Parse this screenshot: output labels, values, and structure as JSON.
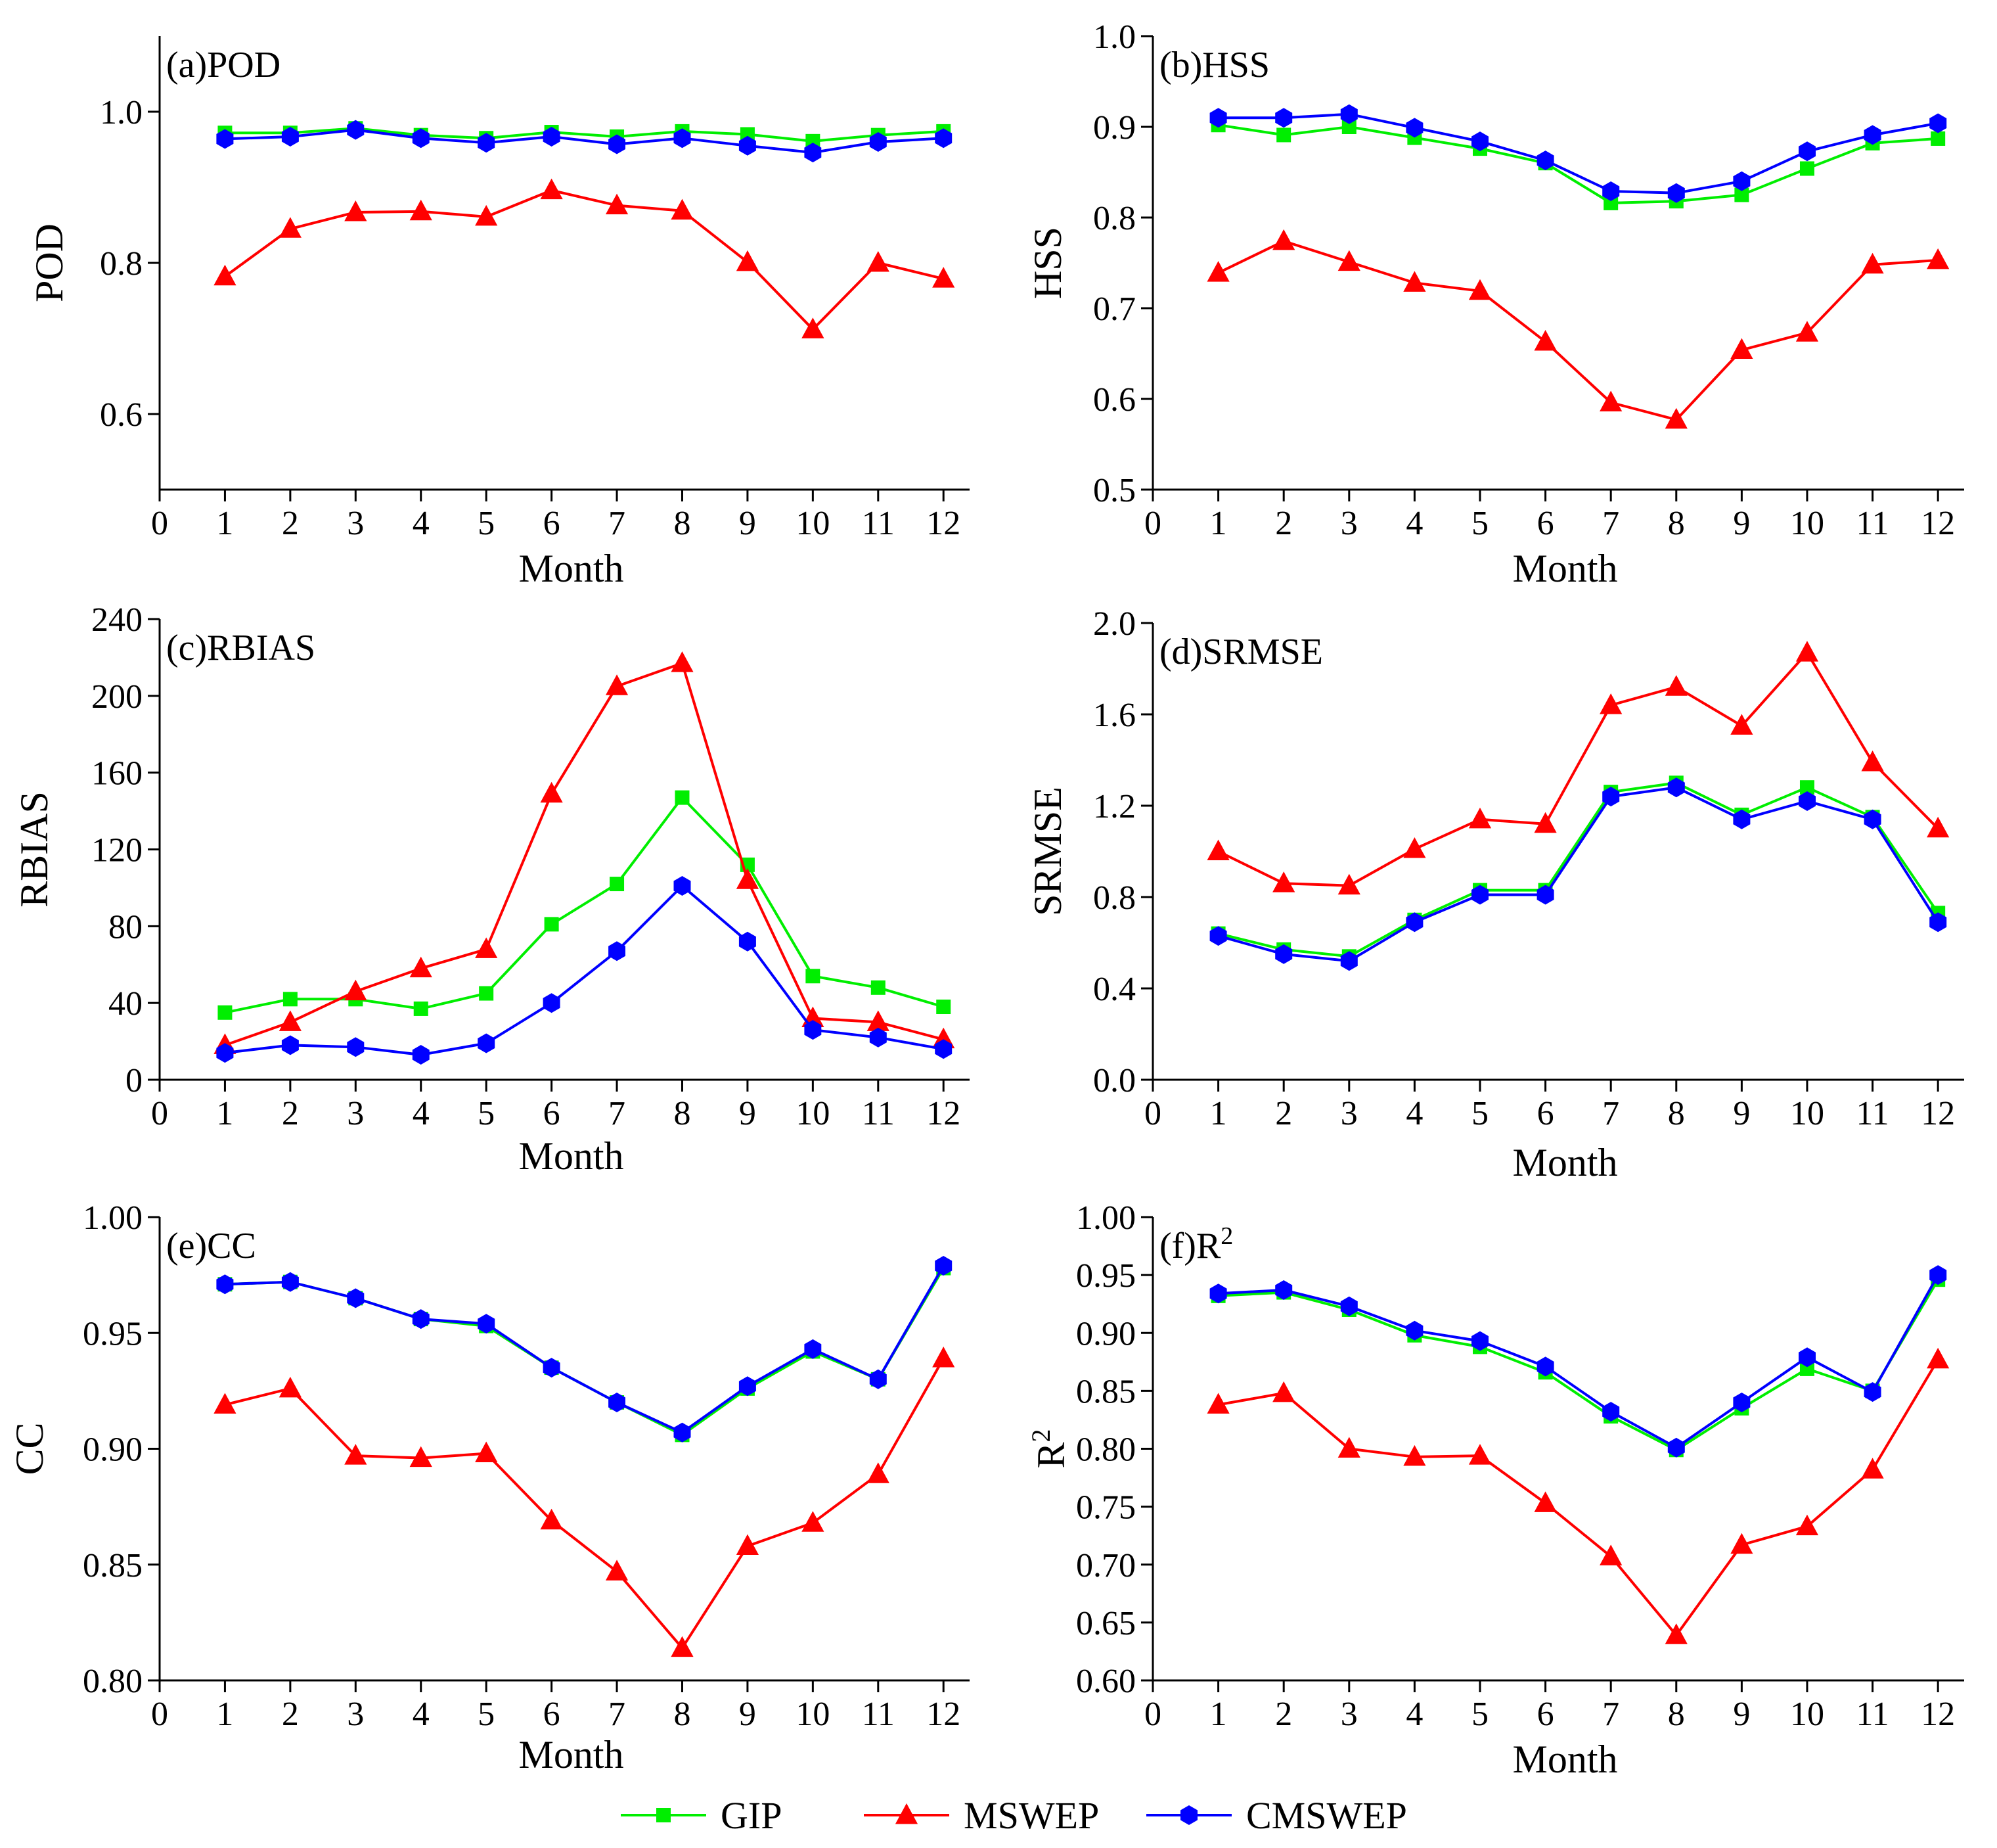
{
  "legend": [
    {
      "name": "GIP",
      "color": "#00ee00",
      "marker": "square"
    },
    {
      "name": "MSWEP",
      "color": "#ff0000",
      "marker": "triangle"
    },
    {
      "name": "CMSWEP",
      "color": "#0000ff",
      "marker": "hexagon"
    }
  ],
  "chart_data": [
    {
      "type": "line",
      "panel": "(a)POD",
      "title": "(a)POD",
      "xlabel": "Month",
      "ylabel": "POD",
      "ylabel_html": [
        "POD"
      ],
      "xlim": [
        0,
        12.4
      ],
      "ylim": [
        0.5,
        1.1
      ],
      "yticks": [
        0.6,
        0.8,
        1.0
      ],
      "ytick_labels": [
        "0.6",
        "0.8",
        "1.0"
      ],
      "x": [
        1,
        2,
        3,
        4,
        5,
        6,
        7,
        8,
        9,
        10,
        11,
        12
      ],
      "xtick_labels": [
        "0",
        "1",
        "2",
        "3",
        "4",
        "5",
        "6",
        "7",
        "8",
        "9",
        "10",
        "11",
        "12"
      ],
      "series": [
        {
          "name": "GIP",
          "values": [
            0.972,
            0.972,
            0.978,
            0.969,
            0.965,
            0.973,
            0.967,
            0.974,
            0.97,
            0.961,
            0.969,
            0.974
          ]
        },
        {
          "name": "MSWEP",
          "values": [
            0.782,
            0.845,
            0.867,
            0.868,
            0.861,
            0.896,
            0.876,
            0.869,
            0.801,
            0.712,
            0.8,
            0.779
          ]
        },
        {
          "name": "CMSWEP",
          "values": [
            0.964,
            0.967,
            0.976,
            0.965,
            0.959,
            0.967,
            0.957,
            0.965,
            0.955,
            0.946,
            0.96,
            0.965
          ]
        }
      ]
    },
    {
      "type": "line",
      "panel": "(b)HSS",
      "title": "(b)HSS",
      "xlabel": "Month",
      "ylabel": "HSS",
      "ylabel_html": [
        "HSS"
      ],
      "xlim": [
        0,
        12.4
      ],
      "ylim": [
        0.5,
        1.0
      ],
      "yticks": [
        0.5,
        0.6,
        0.7,
        0.8,
        0.9,
        1.0
      ],
      "ytick_labels": [
        "0.5",
        "0.6",
        "0.7",
        "0.8",
        "0.9",
        "1.0"
      ],
      "x": [
        1,
        2,
        3,
        4,
        5,
        6,
        7,
        8,
        9,
        10,
        11,
        12
      ],
      "xtick_labels": [
        "0",
        "1",
        "2",
        "3",
        "4",
        "5",
        "6",
        "7",
        "8",
        "9",
        "10",
        "11",
        "12"
      ],
      "series": [
        {
          "name": "GIP",
          "values": [
            0.902,
            0.891,
            0.9,
            0.888,
            0.876,
            0.86,
            0.816,
            0.818,
            0.825,
            0.854,
            0.882,
            0.887
          ]
        },
        {
          "name": "MSWEP",
          "values": [
            0.739,
            0.774,
            0.751,
            0.728,
            0.719,
            0.663,
            0.596,
            0.577,
            0.654,
            0.673,
            0.748,
            0.753
          ]
        },
        {
          "name": "CMSWEP",
          "values": [
            0.91,
            0.91,
            0.914,
            0.899,
            0.884,
            0.863,
            0.829,
            0.827,
            0.84,
            0.873,
            0.891,
            0.904
          ]
        }
      ]
    },
    {
      "type": "line",
      "panel": "(c)RBIAS",
      "title": "(c)RBIAS",
      "xlabel": "Month",
      "ylabel": "RBIAS",
      "ylabel_html": [
        "RBIAS"
      ],
      "xlim": [
        0,
        12.4
      ],
      "ylim": [
        0,
        240
      ],
      "yticks": [
        0,
        40,
        80,
        120,
        160,
        200,
        240
      ],
      "ytick_labels": [
        "0",
        "40",
        "80",
        "120",
        "160",
        "200",
        "240"
      ],
      "x": [
        1,
        2,
        3,
        4,
        5,
        6,
        7,
        8,
        9,
        10,
        11,
        12
      ],
      "xtick_labels": [
        "0",
        "1",
        "2",
        "3",
        "4",
        "5",
        "6",
        "7",
        "8",
        "9",
        "10",
        "11",
        "12"
      ],
      "series": [
        {
          "name": "GIP",
          "values": [
            35,
            42,
            42,
            37,
            45,
            81,
            102,
            147,
            112,
            54,
            48,
            38
          ]
        },
        {
          "name": "MSWEP",
          "values": [
            18,
            30,
            46,
            58,
            68,
            149,
            205,
            217,
            104,
            32,
            30,
            21
          ]
        },
        {
          "name": "CMSWEP",
          "values": [
            14,
            18,
            17,
            13,
            19,
            40,
            67,
            101,
            72,
            26,
            22,
            16
          ]
        }
      ]
    },
    {
      "type": "line",
      "panel": "(d)SRMSE",
      "title": "(d)SRMSE",
      "xlabel": "Month",
      "ylabel": "SRMSE",
      "ylabel_html": [
        "SRMSE"
      ],
      "xlim": [
        0,
        12.4
      ],
      "ylim": [
        0,
        2.0
      ],
      "yticks": [
        0,
        0.4,
        0.8,
        1.2,
        1.6,
        2.0
      ],
      "ytick_labels": [
        "0.0",
        "0.4",
        "0.8",
        "1.2",
        "1.6",
        "2.0"
      ],
      "x": [
        1,
        2,
        3,
        4,
        5,
        6,
        7,
        8,
        9,
        10,
        11,
        12
      ],
      "xtick_labels": [
        "0",
        "1",
        "2",
        "3",
        "4",
        "5",
        "6",
        "7",
        "8",
        "9",
        "10",
        "11",
        "12"
      ],
      "series": [
        {
          "name": "GIP",
          "values": [
            0.64,
            0.57,
            0.54,
            0.7,
            0.83,
            0.83,
            1.26,
            1.3,
            1.16,
            1.28,
            1.15,
            0.73
          ]
        },
        {
          "name": "MSWEP",
          "values": [
            1.0,
            0.86,
            0.85,
            1.01,
            1.14,
            1.12,
            1.64,
            1.72,
            1.55,
            1.87,
            1.39,
            1.1
          ]
        },
        {
          "name": "CMSWEP",
          "values": [
            0.63,
            0.55,
            0.52,
            0.69,
            0.81,
            0.81,
            1.24,
            1.28,
            1.14,
            1.22,
            1.14,
            0.69
          ]
        }
      ]
    },
    {
      "type": "line",
      "panel": "(e)CC",
      "title": "(e)CC",
      "xlabel": "Month",
      "ylabel": "CC",
      "ylabel_html": [
        "CC"
      ],
      "xlim": [
        0,
        12.4
      ],
      "ylim": [
        0.8,
        1.0
      ],
      "yticks": [
        0.8,
        0.85,
        0.9,
        0.95,
        1.0
      ],
      "ytick_labels": [
        "0.80",
        "0.85",
        "0.90",
        "0.95",
        "1.00"
      ],
      "x": [
        1,
        2,
        3,
        4,
        5,
        6,
        7,
        8,
        9,
        10,
        11,
        12
      ],
      "xtick_labels": [
        "0",
        "1",
        "2",
        "3",
        "4",
        "5",
        "6",
        "7",
        "8",
        "9",
        "10",
        "11",
        "12"
      ],
      "series": [
        {
          "name": "GIP",
          "values": [
            0.971,
            0.972,
            0.965,
            0.956,
            0.953,
            0.935,
            0.92,
            0.906,
            0.926,
            0.942,
            0.93,
            0.978
          ]
        },
        {
          "name": "MSWEP",
          "values": [
            0.919,
            0.926,
            0.897,
            0.896,
            0.898,
            0.869,
            0.847,
            0.814,
            0.858,
            0.868,
            0.889,
            0.939
          ]
        },
        {
          "name": "CMSWEP",
          "values": [
            0.971,
            0.972,
            0.965,
            0.956,
            0.954,
            0.935,
            0.92,
            0.907,
            0.927,
            0.943,
            0.93,
            0.979
          ]
        }
      ]
    },
    {
      "type": "line",
      "panel": "(f)R2",
      "title": "(f)R2",
      "title_main": "(f)R",
      "title_sup": "2",
      "xlabel": "Month",
      "ylabel": "R2",
      "ylabel_main": "R",
      "ylabel_sup": "2",
      "xlim": [
        0,
        12.4
      ],
      "ylim": [
        0.6,
        1.0
      ],
      "yticks": [
        0.6,
        0.65,
        0.7,
        0.75,
        0.8,
        0.85,
        0.9,
        0.95,
        1.0
      ],
      "ytick_labels": [
        "0.60",
        "0.65",
        "0.70",
        "0.75",
        "0.80",
        "0.85",
        "0.90",
        "0.95",
        "1.00"
      ],
      "x": [
        1,
        2,
        3,
        4,
        5,
        6,
        7,
        8,
        9,
        10,
        11,
        12
      ],
      "xtick_labels": [
        "0",
        "1",
        "2",
        "3",
        "4",
        "5",
        "6",
        "7",
        "8",
        "9",
        "10",
        "11",
        "12"
      ],
      "series": [
        {
          "name": "GIP",
          "values": [
            0.932,
            0.935,
            0.92,
            0.898,
            0.888,
            0.866,
            0.828,
            0.799,
            0.835,
            0.869,
            0.85,
            0.946
          ]
        },
        {
          "name": "MSWEP",
          "values": [
            0.838,
            0.848,
            0.8,
            0.793,
            0.794,
            0.753,
            0.707,
            0.639,
            0.717,
            0.733,
            0.782,
            0.877
          ]
        },
        {
          "name": "CMSWEP",
          "values": [
            0.934,
            0.937,
            0.923,
            0.902,
            0.893,
            0.871,
            0.832,
            0.801,
            0.84,
            0.879,
            0.849,
            0.95
          ]
        }
      ]
    }
  ]
}
